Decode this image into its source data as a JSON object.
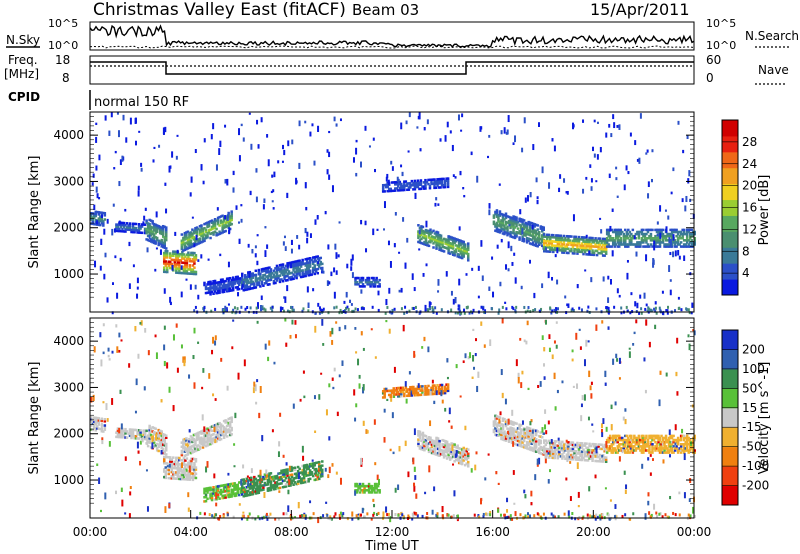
{
  "header": {
    "title": "Christmas Valley East (fitACF)",
    "beam": "Beam 03",
    "date": "15/Apr/2011"
  },
  "top_panel": {
    "left_label": "N.Sky",
    "right_label": "N.Search",
    "axis_low": "10^0",
    "axis_high": "10^5"
  },
  "freq_panel": {
    "left_label_1": "Freq.",
    "left_label_2": "[MHz]",
    "right_label": "Nave",
    "ticks_left": [
      "18",
      "8"
    ],
    "ticks_right": [
      "60",
      "0"
    ]
  },
  "cpid": {
    "label": "CPID",
    "value": "normal 150 RF"
  },
  "colors": {
    "power": [
      "#0a1ae0",
      "#2b50c8",
      "#3a7a98",
      "#4a8f70",
      "#58a860",
      "#9acd32",
      "#f0d020",
      "#f0a020",
      "#f06818",
      "#e82010",
      "#d00000"
    ],
    "velocity": [
      "#e00000",
      "#f04010",
      "#f08010",
      "#f0b030",
      "#c8c8c8",
      "#58c038",
      "#3a9050",
      "#3060b0",
      "#1830c8"
    ]
  },
  "chart_data": [
    {
      "type": "heatmap",
      "name": "power",
      "xlabel": "",
      "ylabel": "Slant Range [km]",
      "colorbar_label": "Power [dB]",
      "colorbar_ticks": [
        "4",
        "8",
        "12",
        "16",
        "20",
        "24",
        "28"
      ],
      "yticks": [
        "1000",
        "2000",
        "3000",
        "4000"
      ],
      "xlim": [
        0,
        24
      ],
      "ylim": [
        180,
        4500
      ],
      "grid": false
    },
    {
      "type": "heatmap",
      "name": "velocity",
      "xlabel": "Time UT",
      "ylabel": "Slant Range [km]",
      "colorbar_label": "Velocity [m s^-1]",
      "colorbar_ticks": [
        "-200",
        "-100",
        "-50",
        "-15",
        "15",
        "50",
        "100",
        "200"
      ],
      "yticks": [
        "1000",
        "2000",
        "3000",
        "4000"
      ],
      "xticks": [
        "00:00",
        "04:00",
        "08:00",
        "12:00",
        "16:00",
        "20:00",
        "00:00"
      ],
      "xlim": [
        0,
        24
      ],
      "ylim": [
        180,
        4500
      ],
      "grid": false
    }
  ]
}
